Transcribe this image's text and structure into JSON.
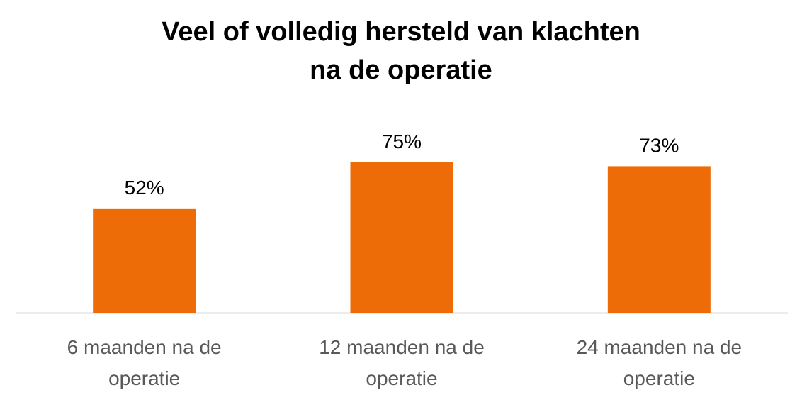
{
  "chart_data": {
    "type": "bar",
    "title_lines": [
      "Veel of volledig hersteld van klachten",
      "na de operatie"
    ],
    "categories": [
      [
        "6 maanden na de",
        "operatie"
      ],
      [
        "12 maanden na de",
        "operatie"
      ],
      [
        "24 maanden na de",
        "operatie"
      ]
    ],
    "values": [
      52,
      75,
      73
    ],
    "data_labels": [
      "52%",
      "75%",
      "73%"
    ],
    "ylim": [
      0,
      100
    ],
    "grid": false,
    "legend": "none",
    "bar_color": "#EE6C07",
    "axis_color": "#D9D9D9"
  }
}
